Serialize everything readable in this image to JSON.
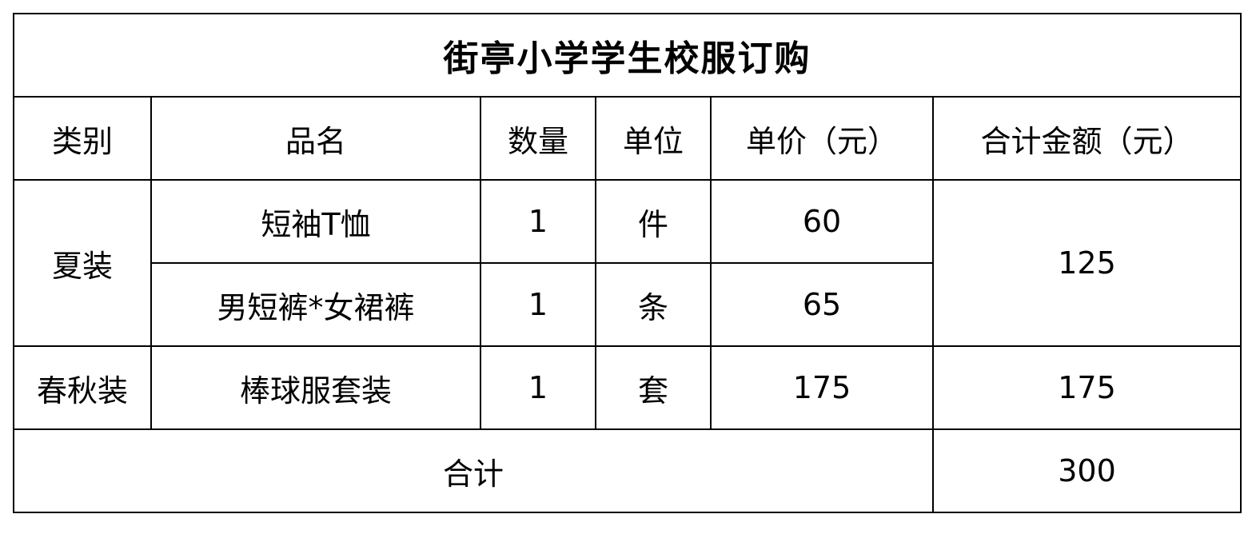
{
  "title": "街亭小学学生校服订购",
  "headers": [
    "类别",
    "品名",
    "数量",
    "单位",
    "单价（元）",
    "合计金额（元）"
  ],
  "rows": [
    {
      "category": "夏装",
      "name": "短袖T恤",
      "qty": "1",
      "unit": "件",
      "price": "60",
      "subtotal": "125"
    },
    {
      "name": "男短裤*女裙裤",
      "qty": "1",
      "unit": "条",
      "price": "65"
    },
    {
      "category": "春秋装",
      "name": "棒球服套装",
      "qty": "1",
      "unit": "套",
      "price": "175",
      "subtotal": "175"
    }
  ],
  "total": {
    "label": "合计",
    "value": "300"
  }
}
